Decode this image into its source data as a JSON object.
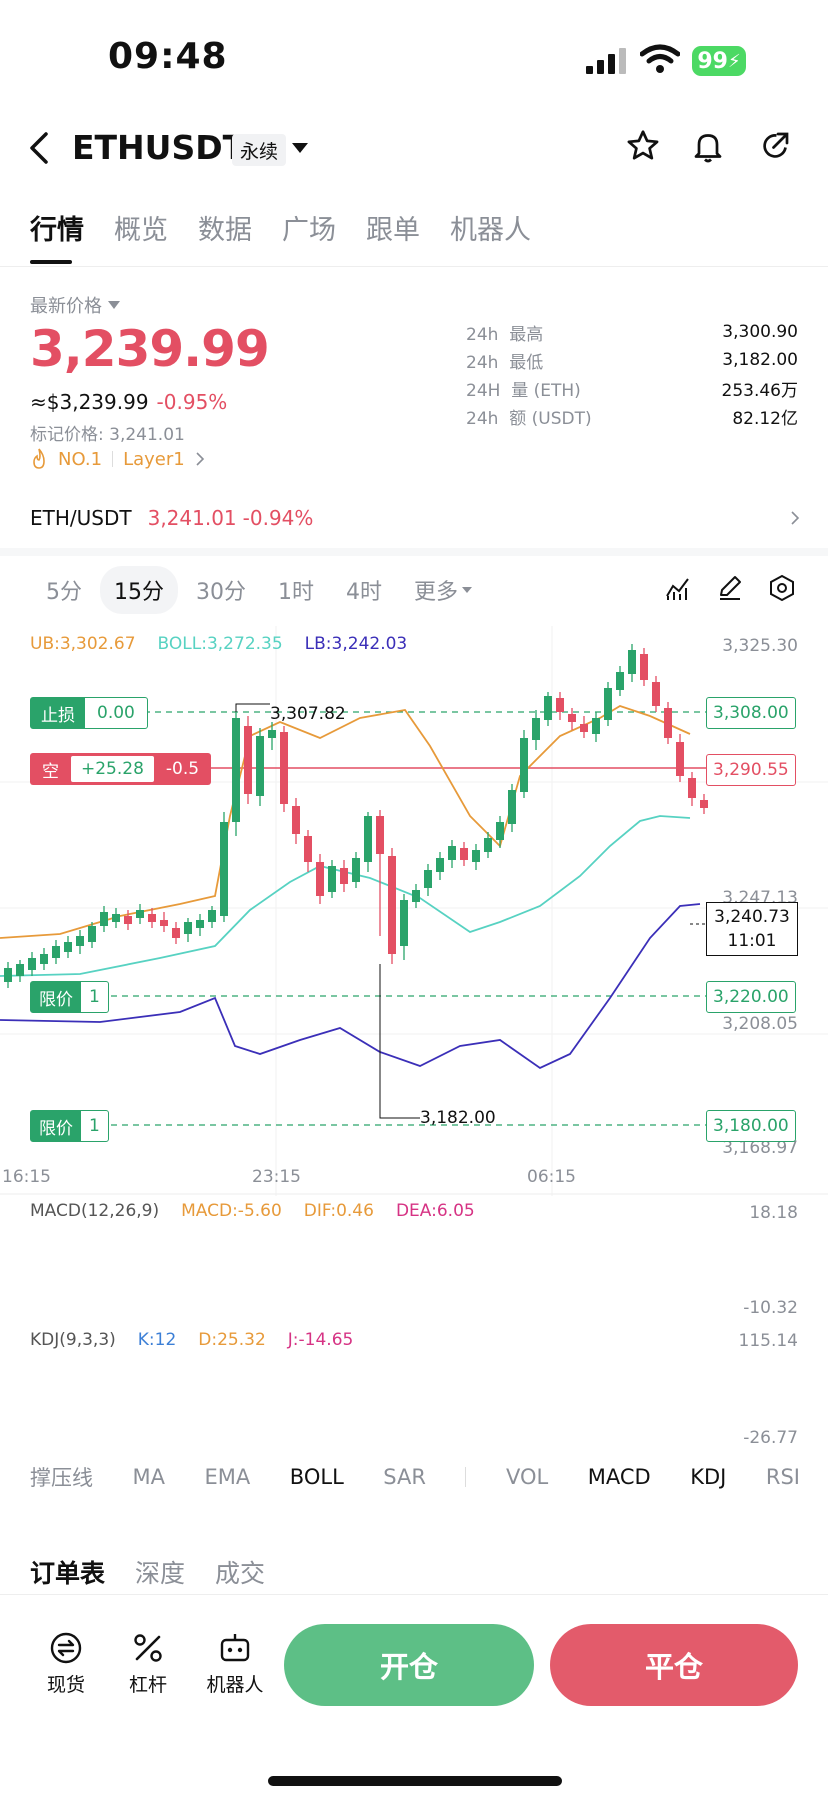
{
  "status_bar": {
    "time": "09:48",
    "battery": "99"
  },
  "header": {
    "title": "ETHUSDT",
    "badge": "永续"
  },
  "tabs": [
    "行情",
    "概览",
    "数据",
    "广场",
    "跟单",
    "机器人"
  ],
  "price_section": {
    "label": "最新价格",
    "last_price": "3,239.99",
    "usd_equiv": "≈$3,239.99",
    "change_pct": "-0.95%",
    "mark_price": "标记价格: 3,241.01",
    "rank_tag": "NO.1",
    "category_tag": "Layer1"
  },
  "stats": [
    {
      "period": "24h",
      "label": "最高",
      "value": "3,300.90"
    },
    {
      "period": "24h",
      "label": "最低",
      "value": "3,182.00"
    },
    {
      "period": "24H",
      "label": "量 (ETH)",
      "value": "253.46万"
    },
    {
      "period": "24h",
      "label": "额 (USDT)",
      "value": "82.12亿"
    }
  ],
  "spot_pair": {
    "name": "ETH/USDT",
    "price": "3,241.01",
    "change": "-0.94%"
  },
  "intervals": [
    "5分",
    "15分",
    "30分",
    "1时",
    "4时",
    "更多"
  ],
  "boll_legend": {
    "ub": "UB:3,302.67",
    "boll": "BOLL:3,272.35",
    "lb": "LB:3,242.03"
  },
  "axis_prices": [
    "3,325.30",
    "3,247.13",
    "3,208.05",
    "3,168.97"
  ],
  "time_axis": [
    "16:15",
    "23:15",
    "06:15"
  ],
  "orders": {
    "stop_loss_label": "止损",
    "stop_loss_value": "0.00",
    "stop_loss_price": "3,308.00",
    "short_label": "空",
    "short_pnl": "+25.28",
    "short_size": "-0.5",
    "short_price": "3,290.55",
    "limit_label": "限价",
    "limit_qty": "1",
    "limit1_price": "3,220.00",
    "limit2_price": "3,180.00"
  },
  "annotations": {
    "high": "3,307.82",
    "low": "3,182.00",
    "current_price": "3,240.73",
    "countdown": "11:01"
  },
  "macd": {
    "title": "MACD(12,26,9)",
    "macd": "MACD:-5.60",
    "dif": "DIF:0.46",
    "dea": "DEA:6.05",
    "max": "18.18",
    "min": "-10.32"
  },
  "kdj": {
    "title": "KDJ(9,3,3)",
    "k": "K:12",
    "d": "D:25.32",
    "j": "J:-14.65",
    "max": "115.14",
    "min": "-26.77"
  },
  "indicator_bar": [
    "撑压线",
    "MA",
    "EMA",
    "BOLL",
    "SAR",
    "VOL",
    "MACD",
    "KDJ",
    "RSI"
  ],
  "book_tabs": [
    "订单表",
    "深度",
    "成交"
  ],
  "bottom_bar": {
    "spot": "现货",
    "leverage": "杠杆",
    "robot": "机器人",
    "open": "开仓",
    "close": "平仓"
  },
  "colors": {
    "up": "#2aa36a",
    "down": "#e34f63",
    "boll_upper": "#e79a3a",
    "boll_mid": "#57d2c2",
    "boll_lower": "#3b2fb8"
  }
}
